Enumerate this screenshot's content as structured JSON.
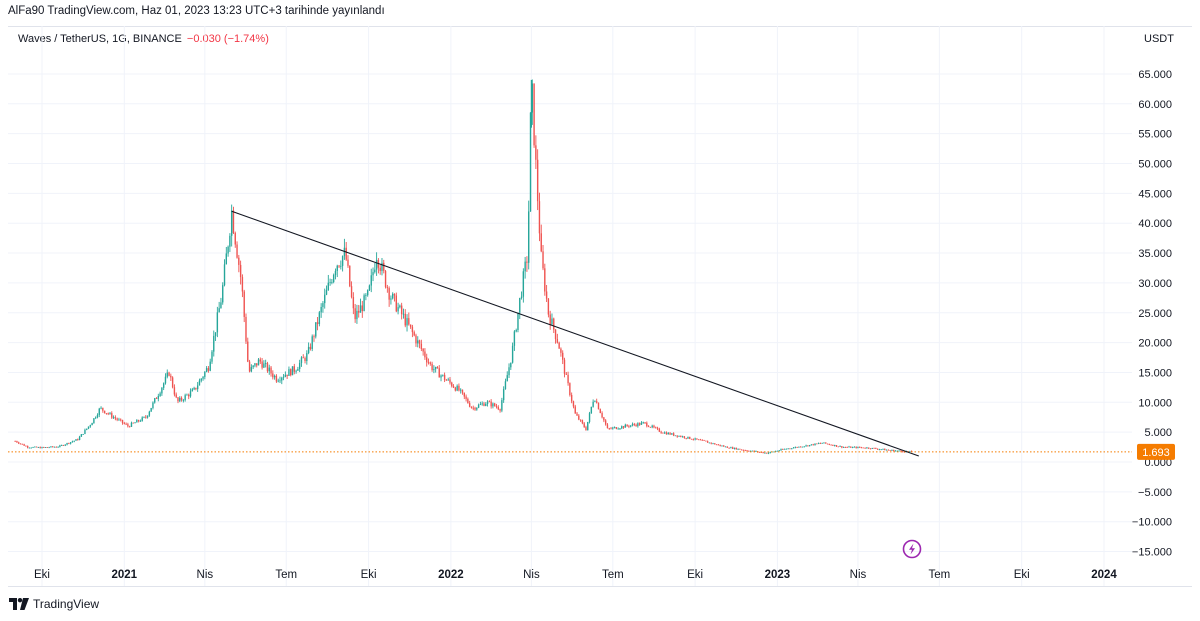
{
  "header": {
    "published_line": "AlFa90 TradingView.com, Haz 01, 2023 13:23 UTC+3 tarihinde yayınlandı"
  },
  "legend": {
    "symbol_text": "Waves / TetherUS, 1G, BINANCE",
    "change_text": "−0.030 (−1.74%)"
  },
  "footer": {
    "brand": "TradingView"
  },
  "colors": {
    "up": "#26a69a",
    "down": "#ef5350",
    "trendline": "#131722",
    "price_line": "#f57c00",
    "price_badge": "#f57c00",
    "grid": "#f0f3fa",
    "lightning": "#9c27b0"
  },
  "chart_data": {
    "type": "candlestick",
    "title": "Waves / TetherUS, 1G, BINANCE",
    "unit_label": "USDT",
    "ylim": [
      -15,
      65
    ],
    "y_ticks": [
      {
        "value": 65,
        "label": "65.000"
      },
      {
        "value": 60,
        "label": "60.000"
      },
      {
        "value": 55,
        "label": "55.000"
      },
      {
        "value": 50,
        "label": "50.000"
      },
      {
        "value": 45,
        "label": "45.000"
      },
      {
        "value": 40,
        "label": "40.000"
      },
      {
        "value": 35,
        "label": "35.000"
      },
      {
        "value": 30,
        "label": "30.000"
      },
      {
        "value": 25,
        "label": "25.000"
      },
      {
        "value": 20,
        "label": "20.000"
      },
      {
        "value": 15,
        "label": "15.000"
      },
      {
        "value": 10,
        "label": "10.000"
      },
      {
        "value": 5,
        "label": "5.000"
      },
      {
        "value": 0,
        "label": "0.000"
      },
      {
        "value": -5,
        "label": "−5.000"
      },
      {
        "value": -10,
        "label": "−10.000"
      },
      {
        "value": -15,
        "label": "−15.000"
      }
    ],
    "x_ticks": [
      {
        "date": "2020-10-01",
        "label": "Eki",
        "bold": false
      },
      {
        "date": "2021-01-01",
        "label": "2021",
        "bold": true
      },
      {
        "date": "2021-04-01",
        "label": "Nis",
        "bold": false
      },
      {
        "date": "2021-07-01",
        "label": "Tem",
        "bold": false
      },
      {
        "date": "2021-10-01",
        "label": "Eki",
        "bold": false
      },
      {
        "date": "2022-01-01",
        "label": "2022",
        "bold": true
      },
      {
        "date": "2022-04-01",
        "label": "Nis",
        "bold": false
      },
      {
        "date": "2022-07-01",
        "label": "Tem",
        "bold": false
      },
      {
        "date": "2022-10-01",
        "label": "Eki",
        "bold": false
      },
      {
        "date": "2023-01-01",
        "label": "2023",
        "bold": true
      },
      {
        "date": "2023-04-01",
        "label": "Nis",
        "bold": false
      },
      {
        "date": "2023-07-01",
        "label": "Tem",
        "bold": false
      },
      {
        "date": "2023-10-01",
        "label": "Eki",
        "bold": false
      },
      {
        "date": "2024-01-01",
        "label": "2024",
        "bold": true
      }
    ],
    "x_range": [
      "2020-09-01",
      "2024-02-15"
    ],
    "series": [
      {
        "name": "Waves / TetherUS",
        "points": [
          {
            "date": "2020-09-01",
            "value": 3.5
          },
          {
            "date": "2020-09-15",
            "value": 2.5
          },
          {
            "date": "2020-10-01",
            "value": 2.4
          },
          {
            "date": "2020-10-20",
            "value": 2.6
          },
          {
            "date": "2020-11-10",
            "value": 3.8
          },
          {
            "date": "2020-11-25",
            "value": 6.5
          },
          {
            "date": "2020-12-05",
            "value": 9.0
          },
          {
            "date": "2020-12-20",
            "value": 7.5
          },
          {
            "date": "2021-01-05",
            "value": 6.0
          },
          {
            "date": "2021-01-25",
            "value": 7.5
          },
          {
            "date": "2021-02-10",
            "value": 12.0
          },
          {
            "date": "2021-02-20",
            "value": 15.0
          },
          {
            "date": "2021-03-01",
            "value": 10.0
          },
          {
            "date": "2021-03-20",
            "value": 12.0
          },
          {
            "date": "2021-04-05",
            "value": 16.0
          },
          {
            "date": "2021-04-20",
            "value": 28.0
          },
          {
            "date": "2021-05-01",
            "value": 42.0
          },
          {
            "date": "2021-05-12",
            "value": 30.0
          },
          {
            "date": "2021-05-20",
            "value": 15.0
          },
          {
            "date": "2021-06-01",
            "value": 17.0
          },
          {
            "date": "2021-06-20",
            "value": 14.0
          },
          {
            "date": "2021-07-10",
            "value": 15.5
          },
          {
            "date": "2021-07-25",
            "value": 18.0
          },
          {
            "date": "2021-08-10",
            "value": 26.0
          },
          {
            "date": "2021-08-25",
            "value": 33.0
          },
          {
            "date": "2021-09-05",
            "value": 35.0
          },
          {
            "date": "2021-09-15",
            "value": 24.0
          },
          {
            "date": "2021-10-01",
            "value": 28.0
          },
          {
            "date": "2021-10-10",
            "value": 35.0
          },
          {
            "date": "2021-10-25",
            "value": 28.0
          },
          {
            "date": "2021-11-10",
            "value": 24.0
          },
          {
            "date": "2021-11-25",
            "value": 20.0
          },
          {
            "date": "2021-12-10",
            "value": 16.0
          },
          {
            "date": "2021-12-25",
            "value": 14.0
          },
          {
            "date": "2022-01-10",
            "value": 12.0
          },
          {
            "date": "2022-01-25",
            "value": 9.0
          },
          {
            "date": "2022-02-10",
            "value": 10.0
          },
          {
            "date": "2022-02-25",
            "value": 9.0
          },
          {
            "date": "2022-03-10",
            "value": 18.0
          },
          {
            "date": "2022-03-20",
            "value": 28.0
          },
          {
            "date": "2022-03-28",
            "value": 35.0
          },
          {
            "date": "2022-04-01",
            "value": 64.0
          },
          {
            "date": "2022-04-05",
            "value": 52.0
          },
          {
            "date": "2022-04-12",
            "value": 34.0
          },
          {
            "date": "2022-04-20",
            "value": 25.0
          },
          {
            "date": "2022-05-01",
            "value": 20.0
          },
          {
            "date": "2022-05-10",
            "value": 14.0
          },
          {
            "date": "2022-05-20",
            "value": 8.0
          },
          {
            "date": "2022-06-01",
            "value": 5.5
          },
          {
            "date": "2022-06-10",
            "value": 11.0
          },
          {
            "date": "2022-06-25",
            "value": 5.5
          },
          {
            "date": "2022-07-15",
            "value": 6.0
          },
          {
            "date": "2022-08-05",
            "value": 6.5
          },
          {
            "date": "2022-08-25",
            "value": 5.0
          },
          {
            "date": "2022-09-15",
            "value": 4.3
          },
          {
            "date": "2022-10-10",
            "value": 3.5
          },
          {
            "date": "2022-11-05",
            "value": 2.5
          },
          {
            "date": "2022-11-25",
            "value": 2.0
          },
          {
            "date": "2022-12-20",
            "value": 1.5
          },
          {
            "date": "2023-01-10",
            "value": 2.2
          },
          {
            "date": "2023-02-05",
            "value": 2.8
          },
          {
            "date": "2023-02-20",
            "value": 3.2
          },
          {
            "date": "2023-03-15",
            "value": 2.5
          },
          {
            "date": "2023-04-10",
            "value": 2.4
          },
          {
            "date": "2023-05-05",
            "value": 2.0
          },
          {
            "date": "2023-05-20",
            "value": 1.8
          },
          {
            "date": "2023-06-01",
            "value": 1.693
          }
        ]
      }
    ],
    "trendline": {
      "from": {
        "date": "2021-05-01",
        "value": 42.0
      },
      "to": {
        "date": "2023-06-08",
        "value": 1.0
      }
    },
    "last_price": {
      "value": 1.693,
      "label": "1.693"
    }
  }
}
